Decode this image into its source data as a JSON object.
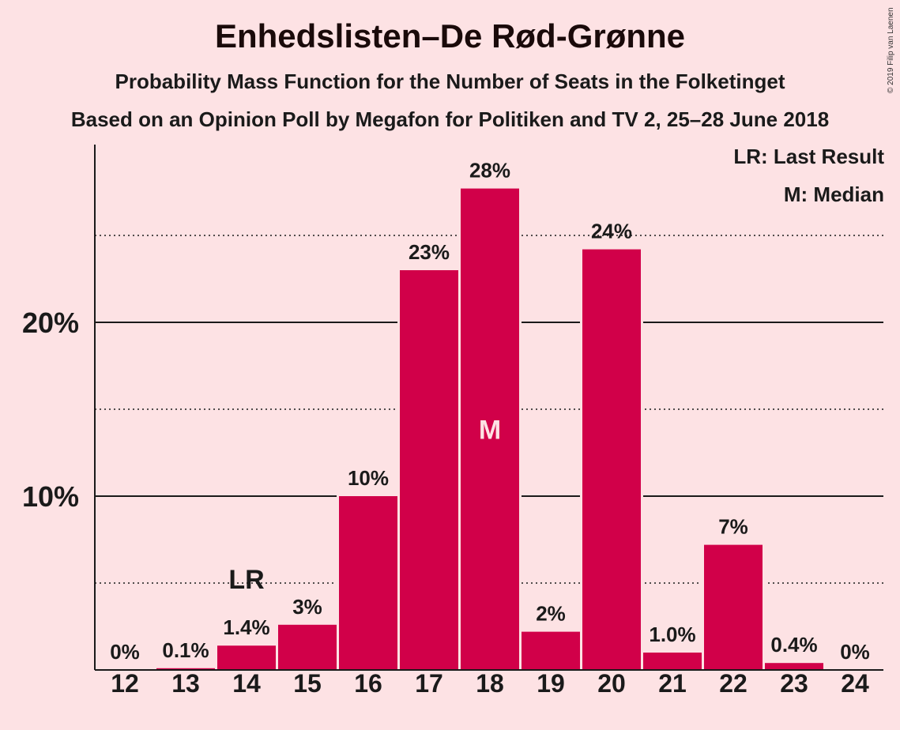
{
  "header": {
    "title": "Enhedslisten–De Rød-Grønne",
    "subtitle1": "Probability Mass Function for the Number of Seats in the Folketinget",
    "subtitle2": "Based on an Opinion Poll by Megafon for Politiken and TV 2, 25–28 June 2018",
    "copyright": "© 2019 Filip van Laenen"
  },
  "legend": {
    "last_result": "LR: Last Result",
    "median": "M: Median"
  },
  "colors": {
    "bar": "#d10049",
    "background": "#fde2e4",
    "text": "#1a1a1a"
  },
  "chart_data": {
    "type": "bar",
    "categories": [
      "12",
      "13",
      "14",
      "15",
      "16",
      "17",
      "18",
      "19",
      "20",
      "21",
      "22",
      "23",
      "24"
    ],
    "values": [
      0,
      0.1,
      1.4,
      2.6,
      10.0,
      23.0,
      27.7,
      2.2,
      24.2,
      1.0,
      7.2,
      0.4,
      0
    ],
    "data_labels": [
      "0%",
      "0.1%",
      "1.4%",
      "3%",
      "10%",
      "23%",
      "28%",
      "2%",
      "24%",
      "1.0%",
      "7%",
      "0.4%",
      "0%"
    ],
    "ylim": [
      0,
      30
    ],
    "y_ticks": [
      {
        "value": 10,
        "label": "10%"
      },
      {
        "value": 20,
        "label": "20%"
      }
    ],
    "minor_grid": [
      5,
      15,
      25
    ],
    "last_result": {
      "category": "14",
      "label": "LR"
    },
    "median": {
      "category": "18",
      "label": "M"
    },
    "grid": true,
    "legend_position": "top-right"
  }
}
